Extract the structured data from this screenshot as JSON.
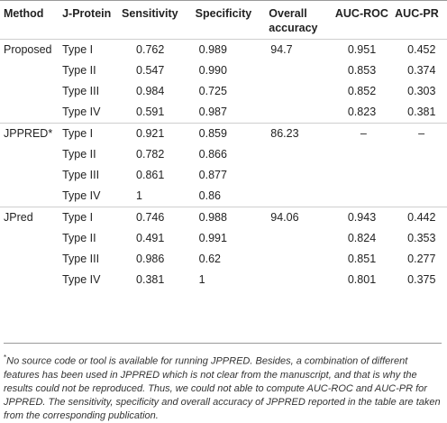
{
  "headers": [
    "Method",
    "J-Protein",
    "Sensitivity",
    "Specificity",
    "Overall accuracy",
    "AUC-ROC",
    "AUC-PR"
  ],
  "rows": [
    {
      "method": "Proposed",
      "type": "Type I",
      "sens": "0.762",
      "spec": "0.989",
      "acc": "94.7",
      "roc": "0.951",
      "pr": "0.452"
    },
    {
      "method": "",
      "type": "Type II",
      "sens": "0.547",
      "spec": "0.990",
      "acc": "",
      "roc": "0.853",
      "pr": "0.374"
    },
    {
      "method": "",
      "type": "Type III",
      "sens": "0.984",
      "spec": "0.725",
      "acc": "",
      "roc": "0.852",
      "pr": "0.303"
    },
    {
      "method": "",
      "type": "Type IV",
      "sens": "0.591",
      "spec": "0.987",
      "acc": "",
      "roc": "0.823",
      "pr": "0.381"
    },
    {
      "method": "JPPRED*",
      "type": "Type I",
      "sens": "0.921",
      "spec": "0.859",
      "acc": "86.23",
      "roc": "–",
      "pr": "–"
    },
    {
      "method": "",
      "type": "Type II",
      "sens": "0.782",
      "spec": "0.866",
      "acc": "",
      "roc": "",
      "pr": ""
    },
    {
      "method": "",
      "type": "Type III",
      "sens": "0.861",
      "spec": "0.877",
      "acc": "",
      "roc": "",
      "pr": ""
    },
    {
      "method": "",
      "type": "Type IV",
      "sens": "1",
      "spec": "0.86",
      "acc": "",
      "roc": "",
      "pr": ""
    },
    {
      "method": "JPred",
      "type": "Type I",
      "sens": "0.746",
      "spec": "0.988",
      "acc": "94.06",
      "roc": "0.943",
      "pr": "0.442"
    },
    {
      "method": "",
      "type": "Type II",
      "sens": "0.491",
      "spec": "0.991",
      "acc": "",
      "roc": "0.824",
      "pr": "0.353"
    },
    {
      "method": "",
      "type": "Type III",
      "sens": "0.986",
      "spec": "0.62",
      "acc": "",
      "roc": "0.851",
      "pr": "0.277"
    },
    {
      "method": "",
      "type": "Type IV",
      "sens": "0.381",
      "spec": "1",
      "acc": "",
      "roc": "0.801",
      "pr": "0.375"
    }
  ],
  "footnote": {
    "marker": "*",
    "text": "No source code or tool is available for running JPPRED. Besides, a combination of different features has been used in JPPRED which is not clear from the manuscript, and that is why the results could not be reproduced. Thus, we could not able to compute AUC-ROC and AUC-PR for JPPRED. The sensitivity, specificity and overall accuracy of JPPRED reported in the table are taken from the corresponding publication."
  }
}
